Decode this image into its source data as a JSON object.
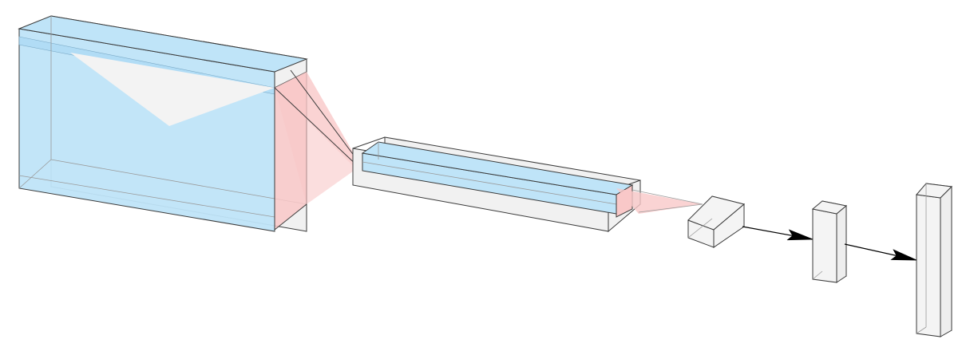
{
  "diagram": {
    "title": "",
    "colors": {
      "conv_fill": "#bfe4f8",
      "volume_fill": "#efefef",
      "kernel_fill": "#f9c8c8",
      "edge": "#3a3a3a",
      "arrow": "#000000",
      "background": "#ffffff"
    },
    "layers": [
      {
        "id": "layer-1",
        "kind": "conv",
        "label": ""
      },
      {
        "id": "layer-2",
        "kind": "conv",
        "label": ""
      },
      {
        "id": "layer-3",
        "kind": "pool",
        "label": ""
      },
      {
        "id": "layer-4",
        "kind": "fc",
        "label": ""
      },
      {
        "id": "layer-5",
        "kind": "fc",
        "label": ""
      }
    ],
    "connections": [
      {
        "from": "layer-1",
        "to": "layer-2",
        "type": "kernel-projection"
      },
      {
        "from": "layer-2",
        "to": "layer-3",
        "type": "kernel-projection"
      },
      {
        "from": "layer-3",
        "to": "layer-4",
        "type": "arrow"
      },
      {
        "from": "layer-4",
        "to": "layer-5",
        "type": "arrow"
      }
    ]
  }
}
